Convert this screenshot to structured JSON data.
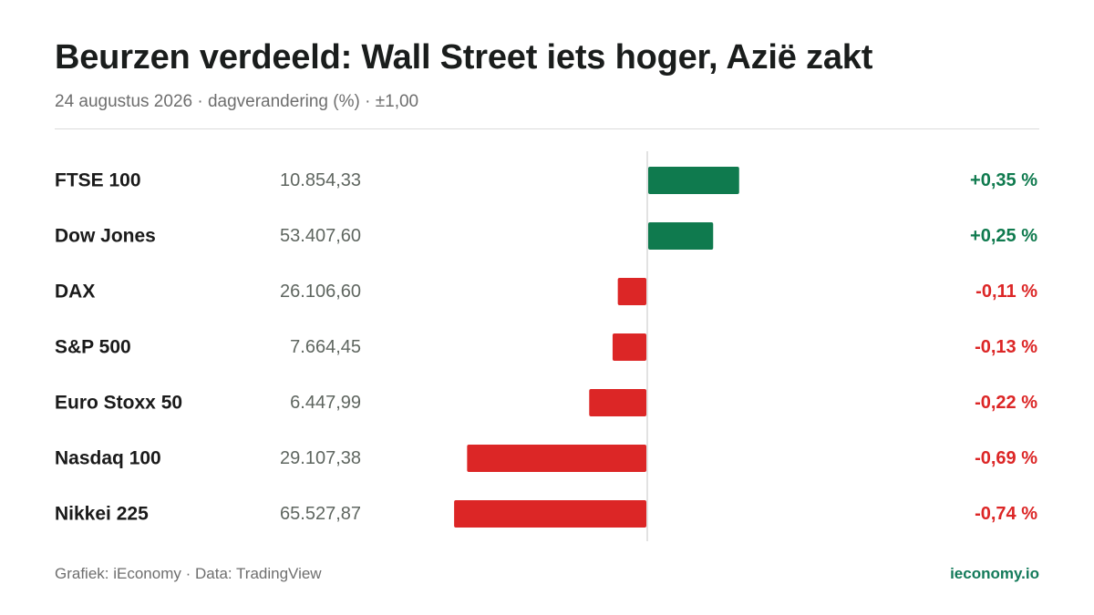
{
  "header": {
    "title": "Beurzen verdeeld: Wall Street iets hoger, Azië zakt",
    "subtitle": "24 augustus 2026 · dagverandering (%) · ±1,00"
  },
  "footer": {
    "source": "Grafiek: iEconomy · Data: TradingView",
    "brand": "ieconomy.io"
  },
  "colors": {
    "positive": "#0f7a4e",
    "negative": "#dc2626",
    "axis": "#d8d8d8"
  },
  "chart_data": {
    "type": "bar",
    "orientation": "horizontal",
    "title": "Beurzen verdeeld: Wall Street iets hoger, Azië zakt",
    "subtitle": "24 augustus 2026 · dagverandering (%) · ±1,00",
    "xlim": [
      -1.0,
      1.0
    ],
    "unit": "%",
    "grid": false,
    "legend": "none",
    "rows": [
      {
        "name": "FTSE 100",
        "level": "10.854,33",
        "value": 0.35,
        "label": "+0,35 %"
      },
      {
        "name": "Dow Jones",
        "level": "53.407,60",
        "value": 0.25,
        "label": "+0,25 %"
      },
      {
        "name": "DAX",
        "level": "26.106,60",
        "value": -0.11,
        "label": "-0,11 %"
      },
      {
        "name": "S&P 500",
        "level": "7.664,45",
        "value": -0.13,
        "label": "-0,13 %"
      },
      {
        "name": "Euro Stoxx 50",
        "level": "6.447,99",
        "value": -0.22,
        "label": "-0,22 %"
      },
      {
        "name": "Nasdaq 100",
        "level": "29.107,38",
        "value": -0.69,
        "label": "-0,69 %"
      },
      {
        "name": "Nikkei 225",
        "level": "65.527,87",
        "value": -0.74,
        "label": "-0,74 %"
      }
    ]
  }
}
